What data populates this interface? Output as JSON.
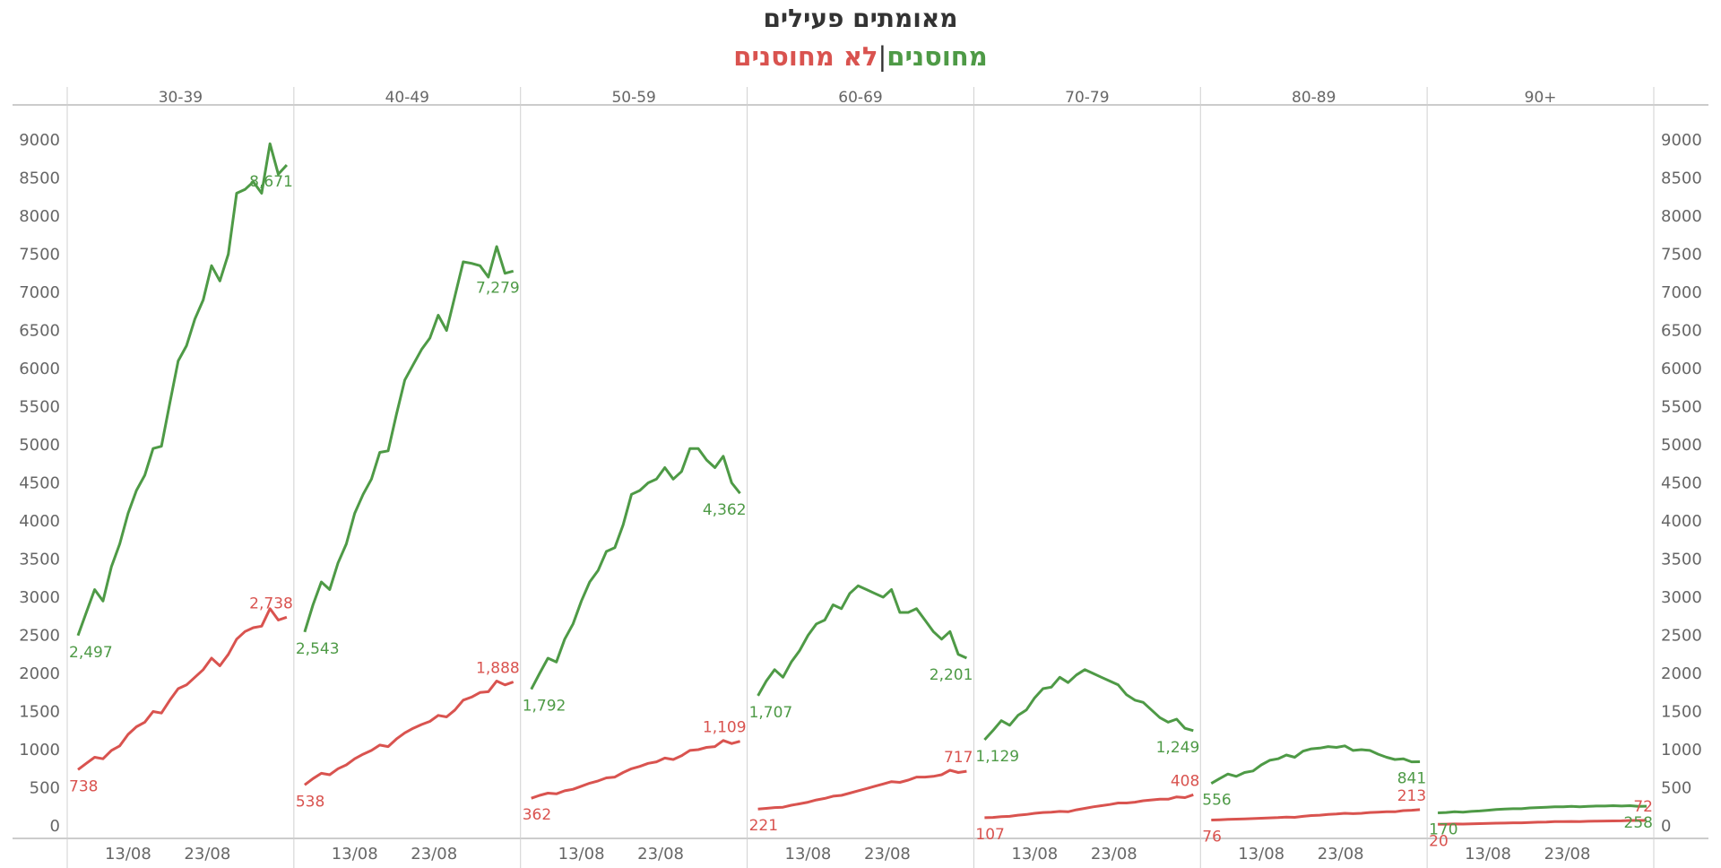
{
  "title": "מאומתים פעילים",
  "subtitle": {
    "vaccinated": "מחוסנים",
    "separator": "|",
    "unvaccinated": "לא מחוסנים"
  },
  "colors": {
    "vaccinated": "#4e9a46",
    "unvaccinated": "#d9534f",
    "grid": "#d0d0d0",
    "text": "#666666"
  },
  "chart_data": {
    "type": "line",
    "ylim": [
      0,
      9000
    ],
    "y_ticks": [
      0,
      500,
      1000,
      1500,
      2000,
      2500,
      3000,
      3500,
      4000,
      4500,
      5000,
      5500,
      6000,
      6500,
      7000,
      7500,
      8000,
      8500,
      9000
    ],
    "x_tick_labels": [
      "13/08",
      "23/08"
    ],
    "series_names": [
      "מחוסנים",
      "לא מחוסנים"
    ],
    "facets": [
      {
        "label": "30-39",
        "vaccinated": [
          2497,
          2800,
          3100,
          2950,
          3400,
          3700,
          4100,
          4400,
          4600,
          4950,
          4980,
          5550,
          6100,
          6300,
          6650,
          6900,
          7350,
          7150,
          7500,
          8300,
          8350,
          8450,
          8300,
          8950,
          8550,
          8671
        ],
        "unvaccinated": [
          738,
          820,
          900,
          880,
          990,
          1050,
          1200,
          1300,
          1360,
          1500,
          1480,
          1650,
          1800,
          1850,
          1950,
          2050,
          2200,
          2100,
          2250,
          2450,
          2550,
          2600,
          2620,
          2850,
          2700,
          2738
        ],
        "vaccinated_start_label": "2,497",
        "vaccinated_end_label": "8,671",
        "unvaccinated_start_label": "738",
        "unvaccinated_end_label": "2,738"
      },
      {
        "label": "40-49",
        "vaccinated": [
          2543,
          2900,
          3200,
          3100,
          3450,
          3700,
          4100,
          4350,
          4550,
          4900,
          4920,
          5400,
          5850,
          6050,
          6250,
          6400,
          6700,
          6500,
          6950,
          7400,
          7380,
          7350,
          7200,
          7600,
          7250,
          7279
        ],
        "unvaccinated": [
          538,
          620,
          690,
          670,
          750,
          800,
          880,
          940,
          990,
          1060,
          1040,
          1140,
          1220,
          1280,
          1330,
          1370,
          1450,
          1430,
          1520,
          1650,
          1690,
          1750,
          1760,
          1900,
          1850,
          1888
        ],
        "vaccinated_start_label": "2,543",
        "vaccinated_end_label": "7,279",
        "unvaccinated_start_label": "538",
        "unvaccinated_end_label": "1,888"
      },
      {
        "label": "50-59",
        "vaccinated": [
          1792,
          2000,
          2200,
          2150,
          2450,
          2650,
          2950,
          3200,
          3350,
          3600,
          3650,
          3950,
          4350,
          4400,
          4500,
          4550,
          4700,
          4550,
          4650,
          4950,
          4950,
          4800,
          4700,
          4850,
          4500,
          4362
        ],
        "unvaccinated": [
          362,
          400,
          430,
          420,
          460,
          480,
          520,
          560,
          590,
          630,
          640,
          700,
          750,
          780,
          820,
          840,
          890,
          870,
          920,
          990,
          1000,
          1030,
          1040,
          1120,
          1080,
          1109
        ],
        "vaccinated_start_label": "1,792",
        "vaccinated_end_label": "4,362",
        "unvaccinated_start_label": "362",
        "unvaccinated_end_label": "1,109"
      },
      {
        "label": "60-69",
        "vaccinated": [
          1707,
          1900,
          2050,
          1950,
          2150,
          2300,
          2500,
          2650,
          2700,
          2900,
          2850,
          3050,
          3150,
          3100,
          3050,
          3000,
          3100,
          2800,
          2800,
          2850,
          2700,
          2550,
          2450,
          2550,
          2250,
          2201
        ],
        "unvaccinated": [
          221,
          230,
          240,
          245,
          270,
          290,
          310,
          340,
          360,
          390,
          400,
          430,
          460,
          490,
          520,
          550,
          580,
          570,
          600,
          640,
          640,
          650,
          670,
          730,
          700,
          717
        ],
        "vaccinated_start_label": "1,707",
        "vaccinated_end_label": "2,201",
        "unvaccinated_start_label": "221",
        "unvaccinated_end_label": "717"
      },
      {
        "label": "70-79",
        "vaccinated": [
          1129,
          1250,
          1380,
          1320,
          1450,
          1520,
          1680,
          1800,
          1820,
          1950,
          1880,
          1980,
          2050,
          2000,
          1950,
          1900,
          1850,
          1720,
          1650,
          1620,
          1520,
          1420,
          1360,
          1400,
          1280,
          1249
        ],
        "unvaccinated": [
          107,
          110,
          120,
          125,
          140,
          150,
          165,
          175,
          180,
          190,
          185,
          210,
          230,
          250,
          265,
          280,
          300,
          300,
          310,
          330,
          340,
          350,
          350,
          380,
          370,
          408
        ],
        "vaccinated_start_label": "1,129",
        "vaccinated_end_label": "1,249",
        "unvaccinated_start_label": "107",
        "unvaccinated_end_label": "408"
      },
      {
        "label": "80-89",
        "vaccinated": [
          556,
          620,
          680,
          650,
          700,
          720,
          800,
          860,
          880,
          930,
          900,
          980,
          1010,
          1020,
          1040,
          1030,
          1050,
          990,
          1000,
          990,
          940,
          900,
          870,
          880,
          840,
          841
        ],
        "unvaccinated": [
          76,
          80,
          85,
          88,
          92,
          95,
          100,
          105,
          108,
          115,
          112,
          125,
          135,
          140,
          150,
          155,
          165,
          160,
          165,
          175,
          180,
          185,
          185,
          200,
          205,
          213
        ],
        "vaccinated_start_label": "556",
        "vaccinated_end_label": "841",
        "unvaccinated_start_label": "76",
        "unvaccinated_end_label": "213"
      },
      {
        "label": "90+",
        "vaccinated": [
          170,
          175,
          185,
          180,
          190,
          195,
          205,
          215,
          220,
          225,
          225,
          235,
          240,
          245,
          250,
          250,
          255,
          250,
          255,
          260,
          260,
          265,
          260,
          265,
          255,
          258
        ],
        "unvaccinated": [
          20,
          22,
          25,
          24,
          27,
          30,
          32,
          35,
          37,
          40,
          40,
          45,
          48,
          50,
          55,
          55,
          58,
          57,
          60,
          62,
          63,
          65,
          66,
          70,
          70,
          72
        ],
        "vaccinated_start_label": "170",
        "vaccinated_end_label": "258",
        "unvaccinated_start_label": "20",
        "unvaccinated_end_label": "72"
      }
    ]
  }
}
